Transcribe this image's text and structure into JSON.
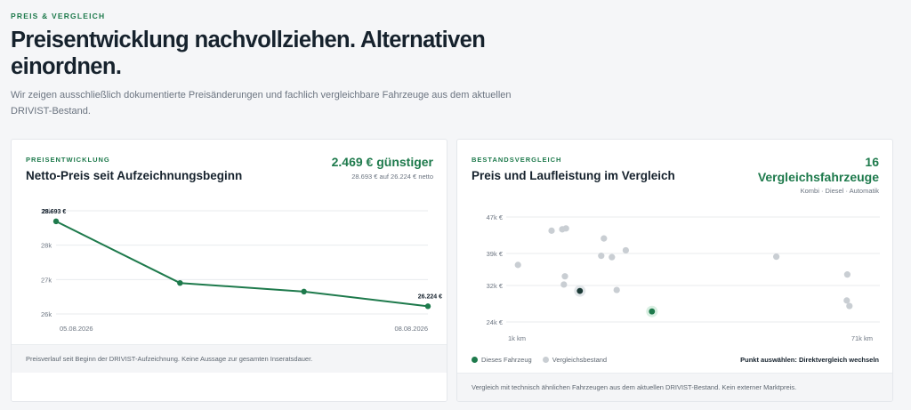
{
  "page": {
    "eyebrow": "PREIS & VERGLEICH",
    "headline": "Preisentwicklung nachvollziehen. Alternativen einordnen.",
    "intro": "Wir zeigen ausschließlich dokumentierte Preisänderungen und fachlich vergleichbare Fahrzeuge aus dem aktuellen DRIVIST-Bestand."
  },
  "price_card": {
    "eyebrow": "PREISENTWICKLUNG",
    "title": "Netto-Preis seit Aufzeichnungsbeginn",
    "kpi": "2.469 € günstiger",
    "kpi_sub": "28.693 € auf 26.224 € netto",
    "footer": "Preisverlauf seit Beginn der DRIVIST-Aufzeichnung. Keine Aussage zur gesamten Inseratsdauer."
  },
  "compare_card": {
    "eyebrow": "BESTANDSVERGLEICH",
    "title": "Preis und Laufleistung im Vergleich",
    "kpi_count": "16",
    "kpi_label": "Vergleichsfahrzeuge",
    "kpi_sub": "Kombi · Diesel · Automatik",
    "legend_this": "Dieses Fahrzeug",
    "legend_others": "Vergleichsbestand",
    "legend_action": "Punkt auswählen: Direktvergleich wechseln",
    "footer": "Vergleich mit technisch ähnlichen Fahrzeugen aus dem aktuellen DRIVIST-Bestand. Kein externer Marktpreis."
  },
  "colors": {
    "accent": "#1e7a4c",
    "this_vehicle": "#1b3a36",
    "others": "#c9ced3",
    "grid": "#e8ebee"
  },
  "chart_data": [
    {
      "type": "line",
      "title": "Netto-Preis seit Aufzeichnungsbeginn",
      "xlabel": "",
      "ylabel": "",
      "x_ticks": [
        "05.08.2026",
        "08.08.2026"
      ],
      "y_ticks": [
        {
          "value": 29000,
          "label": "29k"
        },
        {
          "value": 28000,
          "label": "28k"
        },
        {
          "value": 27000,
          "label": "27k"
        },
        {
          "value": 26000,
          "label": "26k"
        }
      ],
      "ylim": [
        26000,
        29000
      ],
      "series": [
        {
          "points": [
            {
              "x": 0,
              "y": 28693,
              "label": "28.693 €"
            },
            {
              "x": 1,
              "y": 26900,
              "label": ""
            },
            {
              "x": 2,
              "y": 26650,
              "label": ""
            },
            {
              "x": 3,
              "y": 26224,
              "label": "26.224 €"
            }
          ]
        }
      ],
      "grid": true
    },
    {
      "type": "scatter",
      "title": "Preis und Laufleistung im Vergleich",
      "x_ticks": [
        {
          "value": 1,
          "label": "1k km"
        },
        {
          "value": 71,
          "label": "71k km"
        }
      ],
      "xlim": [
        1,
        71
      ],
      "y_ticks": [
        {
          "value": 47000,
          "label": "47k €"
        },
        {
          "value": 39000,
          "label": "39k €"
        },
        {
          "value": 32000,
          "label": "32k €"
        },
        {
          "value": 24000,
          "label": "24k €"
        }
      ],
      "ylim": [
        24000,
        47000
      ],
      "series": [
        {
          "name": "Vergleichsbestand",
          "points": [
            {
              "x": 3.2,
              "y": 36500
            },
            {
              "x": 9.5,
              "y": 44000
            },
            {
              "x": 11.5,
              "y": 44300
            },
            {
              "x": 12.2,
              "y": 44500
            },
            {
              "x": 12.0,
              "y": 34000
            },
            {
              "x": 11.8,
              "y": 32200
            },
            {
              "x": 19.3,
              "y": 42300
            },
            {
              "x": 18.8,
              "y": 38500
            },
            {
              "x": 20.8,
              "y": 38200
            },
            {
              "x": 23.4,
              "y": 39700
            },
            {
              "x": 21.7,
              "y": 31000
            },
            {
              "x": 51.6,
              "y": 38300
            },
            {
              "x": 64.9,
              "y": 34400
            },
            {
              "x": 64.8,
              "y": 28700
            },
            {
              "x": 65.3,
              "y": 27500
            }
          ]
        },
        {
          "name": "Dieses Fahrzeug",
          "points": [
            {
              "x": 14.8,
              "y": 30800
            },
            {
              "x": 28.3,
              "y": 26300
            }
          ]
        }
      ],
      "grid": true,
      "legend": "bottom-left"
    }
  ]
}
